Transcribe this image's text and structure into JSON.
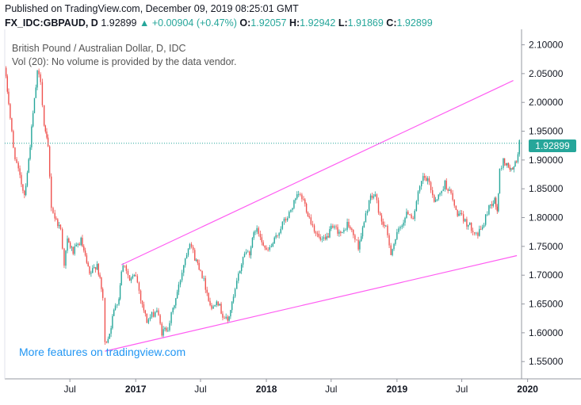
{
  "header": {
    "published": "Published on TradingView.com, December 09, 2019 08:25:01 GMT",
    "symbol": "FX_IDC:GBPAUD, D",
    "last": "1.92899",
    "change": "+0.00904 (+0.47%)",
    "open_label": "O:",
    "open": "1.92057",
    "high_label": "H:",
    "high": "1.92942",
    "low_label": "L:",
    "low": "1.91869",
    "close_label": "C:",
    "close": "1.92899"
  },
  "overlay": {
    "title": "British Pound / Australian Dollar, D, IDC",
    "volume": "Vol (20): No volume is provided by the data vendor."
  },
  "watermark": "More features on tradingview.com",
  "price_tag": "1.92899",
  "colors": {
    "up": "#26a69a",
    "down": "#ef5350",
    "channel": "#ff5cf2",
    "last_line": "#26a69a"
  },
  "chart_data": {
    "type": "candlestick",
    "y_range": [
      1.52,
      2.12
    ],
    "y_ticks": [
      "2.10000",
      "2.05000",
      "2.00000",
      "1.95000",
      "1.90000",
      "1.85000",
      "1.80000",
      "1.75000",
      "1.70000",
      "1.65000",
      "1.60000",
      "1.55000"
    ],
    "x_ticks": [
      "Jul",
      "2017",
      "Jul",
      "2018",
      "Jul",
      "2019",
      "Jul",
      "2020"
    ],
    "last_price": 1.92899,
    "channel_upper": [
      {
        "x": "2016-11-22",
        "y": 1.718
      },
      {
        "x": "2019-11-22",
        "y": 2.038
      }
    ],
    "channel_lower": [
      {
        "x": "2016-10-07",
        "y": 1.568
      },
      {
        "x": "2019-12-02",
        "y": 1.734
      }
    ],
    "path": [
      [
        "2016-01-01",
        2.06
      ],
      [
        "2016-01-12",
        2.0
      ],
      [
        "2016-01-25",
        1.92
      ],
      [
        "2016-02-08",
        1.88
      ],
      [
        "2016-02-25",
        1.84
      ],
      [
        "2016-03-08",
        1.9
      ],
      [
        "2016-03-20",
        1.98
      ],
      [
        "2016-04-01",
        2.05
      ],
      [
        "2016-04-10",
        2.04
      ],
      [
        "2016-04-20",
        1.96
      ],
      [
        "2016-05-01",
        1.92
      ],
      [
        "2016-05-10",
        1.82
      ],
      [
        "2016-05-20",
        1.8
      ],
      [
        "2016-06-05",
        1.78
      ],
      [
        "2016-06-15",
        1.72
      ],
      [
        "2016-06-24",
        1.76
      ],
      [
        "2016-07-10",
        1.74
      ],
      [
        "2016-08-01",
        1.76
      ],
      [
        "2016-08-25",
        1.7
      ],
      [
        "2016-09-15",
        1.72
      ],
      [
        "2016-10-01",
        1.66
      ],
      [
        "2016-10-07",
        1.58
      ],
      [
        "2016-10-20",
        1.6
      ],
      [
        "2016-11-05",
        1.65
      ],
      [
        "2016-11-15",
        1.66
      ],
      [
        "2016-11-22",
        1.71
      ],
      [
        "2016-12-01",
        1.72
      ],
      [
        "2016-12-15",
        1.69
      ],
      [
        "2017-01-01",
        1.7
      ],
      [
        "2017-01-15",
        1.66
      ],
      [
        "2017-02-01",
        1.62
      ],
      [
        "2017-02-15",
        1.63
      ],
      [
        "2017-03-01",
        1.64
      ],
      [
        "2017-03-15",
        1.6
      ],
      [
        "2017-04-01",
        1.61
      ],
      [
        "2017-04-15",
        1.64
      ],
      [
        "2017-05-01",
        1.68
      ],
      [
        "2017-05-15",
        1.72
      ],
      [
        "2017-06-01",
        1.76
      ],
      [
        "2017-06-15",
        1.73
      ],
      [
        "2017-07-01",
        1.71
      ],
      [
        "2017-07-15",
        1.68
      ],
      [
        "2017-08-01",
        1.64
      ],
      [
        "2017-08-15",
        1.66
      ],
      [
        "2017-09-01",
        1.63
      ],
      [
        "2017-09-15",
        1.62
      ],
      [
        "2017-10-01",
        1.66
      ],
      [
        "2017-10-15",
        1.7
      ],
      [
        "2017-11-01",
        1.74
      ],
      [
        "2017-11-15",
        1.74
      ],
      [
        "2017-12-01",
        1.78
      ],
      [
        "2017-12-15",
        1.77
      ],
      [
        "2018-01-01",
        1.74
      ],
      [
        "2018-01-15",
        1.75
      ],
      [
        "2018-02-01",
        1.77
      ],
      [
        "2018-02-15",
        1.79
      ],
      [
        "2018-03-01",
        1.8
      ],
      [
        "2018-03-15",
        1.82
      ],
      [
        "2018-04-01",
        1.84
      ],
      [
        "2018-04-15",
        1.83
      ],
      [
        "2018-05-01",
        1.8
      ],
      [
        "2018-05-15",
        1.78
      ],
      [
        "2018-06-01",
        1.76
      ],
      [
        "2018-06-15",
        1.76
      ],
      [
        "2018-07-01",
        1.78
      ],
      [
        "2018-07-15",
        1.78
      ],
      [
        "2018-08-01",
        1.77
      ],
      [
        "2018-08-15",
        1.79
      ],
      [
        "2018-09-01",
        1.77
      ],
      [
        "2018-09-15",
        1.75
      ],
      [
        "2018-10-01",
        1.79
      ],
      [
        "2018-10-15",
        1.83
      ],
      [
        "2018-11-01",
        1.84
      ],
      [
        "2018-11-15",
        1.8
      ],
      [
        "2018-12-01",
        1.78
      ],
      [
        "2018-12-15",
        1.74
      ],
      [
        "2019-01-01",
        1.77
      ],
      [
        "2019-01-15",
        1.79
      ],
      [
        "2019-02-01",
        1.81
      ],
      [
        "2019-02-15",
        1.8
      ],
      [
        "2019-03-01",
        1.84
      ],
      [
        "2019-03-15",
        1.87
      ],
      [
        "2019-04-01",
        1.86
      ],
      [
        "2019-04-15",
        1.83
      ],
      [
        "2019-05-01",
        1.84
      ],
      [
        "2019-05-15",
        1.86
      ],
      [
        "2019-06-01",
        1.84
      ],
      [
        "2019-06-15",
        1.81
      ],
      [
        "2019-07-01",
        1.8
      ],
      [
        "2019-07-15",
        1.79
      ],
      [
        "2019-08-01",
        1.78
      ],
      [
        "2019-08-15",
        1.77
      ],
      [
        "2019-09-01",
        1.79
      ],
      [
        "2019-09-15",
        1.82
      ],
      [
        "2019-10-01",
        1.83
      ],
      [
        "2019-10-08",
        1.81
      ],
      [
        "2019-10-15",
        1.88
      ],
      [
        "2019-10-25",
        1.9
      ],
      [
        "2019-11-05",
        1.89
      ],
      [
        "2019-11-20",
        1.88
      ],
      [
        "2019-12-01",
        1.9
      ],
      [
        "2019-12-09",
        1.929
      ]
    ]
  }
}
